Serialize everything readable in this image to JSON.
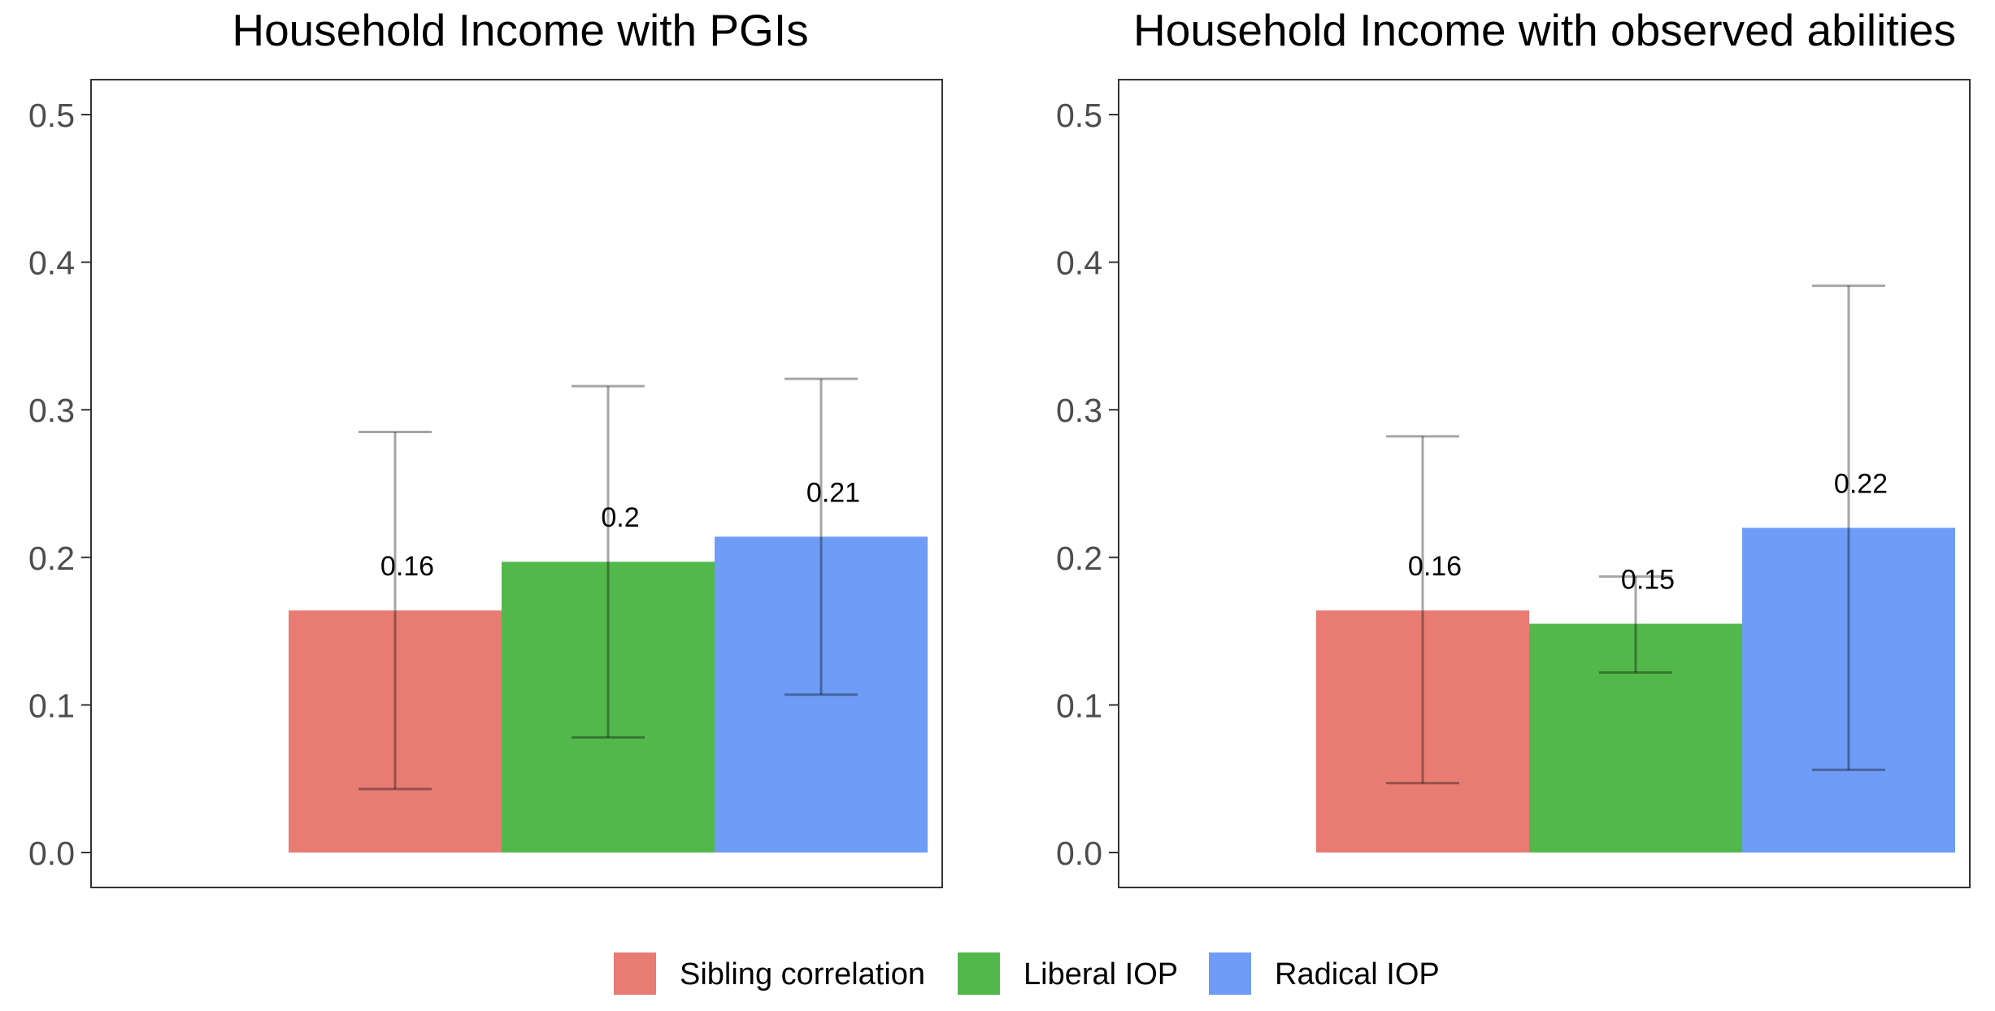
{
  "chart_data": [
    {
      "type": "bar",
      "title": "Household Income with PGIs",
      "xlabel": "",
      "ylabel": "",
      "ylim": [
        0,
        0.5
      ],
      "yticks": [
        "0.0",
        "0.1",
        "0.2",
        "0.3",
        "0.4",
        "0.5"
      ],
      "grid": false,
      "categories": [
        "Sibling correlation",
        "Liberal IOP",
        "Radical IOP"
      ],
      "values": [
        0.164,
        0.197,
        0.214
      ],
      "error_low": [
        0.043,
        0.078,
        0.107
      ],
      "error_high": [
        0.285,
        0.316,
        0.321
      ],
      "value_labels": [
        "0.16",
        "0.2",
        "0.21"
      ]
    },
    {
      "type": "bar",
      "title": "Household Income with observed abilities",
      "xlabel": "",
      "ylabel": "",
      "ylim": [
        0,
        0.5
      ],
      "yticks": [
        "0.0",
        "0.1",
        "0.2",
        "0.3",
        "0.4",
        "0.5"
      ],
      "grid": false,
      "categories": [
        "Sibling correlation",
        "Liberal IOP",
        "Radical IOP"
      ],
      "values": [
        0.164,
        0.155,
        0.22
      ],
      "error_low": [
        0.047,
        0.122,
        0.056
      ],
      "error_high": [
        0.282,
        0.187,
        0.384
      ],
      "value_labels": [
        "0.16",
        "0.15",
        "0.22"
      ]
    }
  ],
  "legend": {
    "placement": "bottom",
    "items": [
      {
        "label": "Sibling correlation",
        "color": "#E87C73"
      },
      {
        "label": "Liberal IOP",
        "color": "#53B84C"
      },
      {
        "label": "Radical IOP",
        "color": "#6E9CF7"
      }
    ]
  },
  "colors": {
    "error_bar": "#000000",
    "panel_border": "#333333",
    "tick_text": "#4d4d4d"
  }
}
